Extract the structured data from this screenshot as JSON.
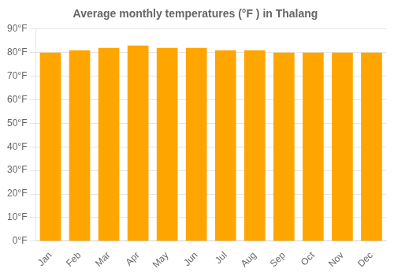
{
  "chart_data": {
    "type": "bar",
    "title": "Average monthly temperatures (°F ) in Thalang",
    "categories": [
      "Jan",
      "Feb",
      "Mar",
      "Apr",
      "May",
      "Jun",
      "Jul",
      "Aug",
      "Sep",
      "Oct",
      "Nov",
      "Dec"
    ],
    "values": [
      80,
      81,
      82,
      83,
      82,
      82,
      81,
      81,
      80,
      80,
      80,
      80
    ],
    "color": "#FFA500",
    "ylim": [
      0,
      90
    ],
    "yticks": [
      {
        "value": 0,
        "label": "0°F"
      },
      {
        "value": 10,
        "label": "10°F"
      },
      {
        "value": 20,
        "label": "20°F"
      },
      {
        "value": 30,
        "label": "30°F"
      },
      {
        "value": 40,
        "label": "40°F"
      },
      {
        "value": 50,
        "label": "50°F"
      },
      {
        "value": 60,
        "label": "60°F"
      },
      {
        "value": 70,
        "label": "70°F"
      },
      {
        "value": 80,
        "label": "80°F"
      },
      {
        "value": 90,
        "label": "90°F"
      }
    ],
    "grid": true
  }
}
